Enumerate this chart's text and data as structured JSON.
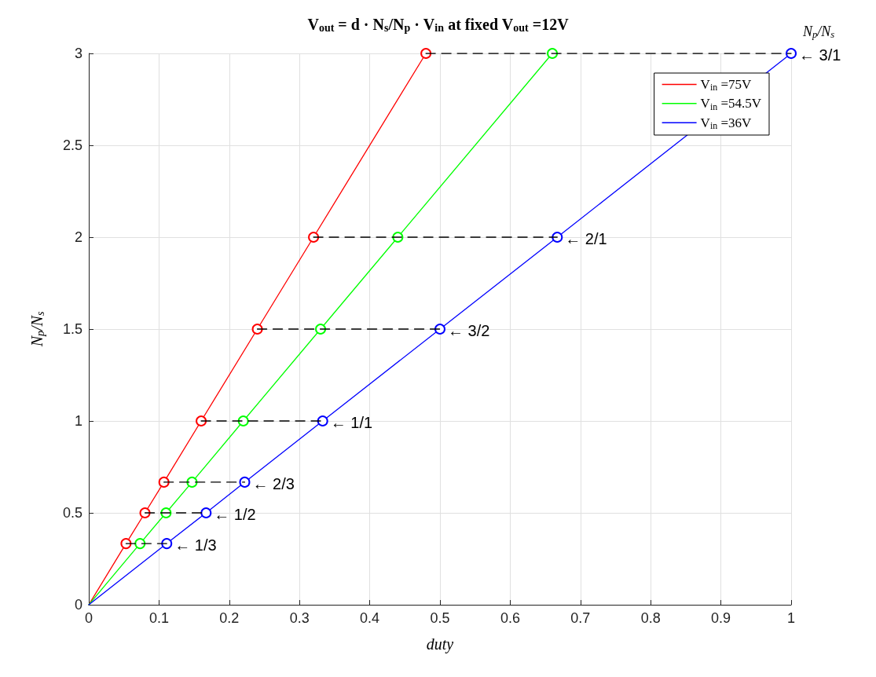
{
  "chart_data": {
    "type": "line",
    "title": "V$_{out}$ = d · N$_{s}$/N$_{p}$ · V$_{in}$ at fixed V$_{out}$ =12V",
    "xlabel": "duty",
    "ylabel": "N$_{p}$/N$_{s}$",
    "xlim": [
      0,
      1
    ],
    "ylim": [
      0,
      3
    ],
    "xticks": [
      0,
      0.1,
      0.2,
      0.3,
      0.4,
      0.5,
      0.6,
      0.7,
      0.8,
      0.9,
      1
    ],
    "yticks": [
      0,
      0.5,
      1,
      1.5,
      2,
      2.5,
      3
    ],
    "grid": true,
    "legend": "top right",
    "marker": "circle",
    "line_style": "solid",
    "series": [
      {
        "name": "V$_{in}$ =75V",
        "color": "#ff0000",
        "x": [
          0,
          0.053,
          0.08,
          0.107,
          0.16,
          0.24,
          0.32,
          0.48
        ],
        "values": [
          0,
          0.333,
          0.5,
          0.667,
          1,
          1.5,
          2,
          3
        ]
      },
      {
        "name": "V$_{in}$ =54.5V",
        "color": "#00ff00",
        "x": [
          0,
          0.073,
          0.11,
          0.147,
          0.22,
          0.33,
          0.44,
          0.66
        ],
        "values": [
          0,
          0.333,
          0.5,
          0.667,
          1,
          1.5,
          2,
          3
        ]
      },
      {
        "name": "V$_{in}$ =36V",
        "color": "#0000ff",
        "x": [
          0,
          0.111,
          0.167,
          0.222,
          0.333,
          0.5,
          0.667,
          1
        ],
        "values": [
          0,
          0.333,
          0.5,
          0.667,
          1,
          1.5,
          2,
          3
        ]
      },
      {
        "color": "#000000",
        "line_style": "dashed",
        "marker": "none",
        "x": [
          0.053,
          0.111
        ],
        "values": [
          0.333,
          0.333
        ]
      },
      {
        "color": "#000000",
        "line_style": "dashed",
        "marker": "none",
        "x": [
          0.08,
          0.167
        ],
        "values": [
          0.5,
          0.5
        ]
      },
      {
        "color": "#000000",
        "line_style": "dashed",
        "marker": "none",
        "x": [
          0.107,
          0.222
        ],
        "values": [
          0.667,
          0.667
        ]
      },
      {
        "color": "#000000",
        "line_style": "dashed",
        "marker": "none",
        "x": [
          0.16,
          0.333
        ],
        "values": [
          1,
          1
        ]
      },
      {
        "color": "#000000",
        "line_style": "dashed",
        "marker": "none",
        "x": [
          0.24,
          0.5
        ],
        "values": [
          1.5,
          1.5
        ]
      },
      {
        "color": "#000000",
        "line_style": "dashed",
        "marker": "none",
        "x": [
          0.32,
          0.667
        ],
        "values": [
          2,
          2
        ]
      },
      {
        "color": "#000000",
        "line_style": "dashed",
        "marker": "none",
        "x": [
          0.48,
          1
        ],
        "values": [
          3,
          3
        ]
      }
    ],
    "annotations": [
      "N$_{p}$/N$_{s}$",
      {
        "text": "← 1/3",
        "x": 0.111,
        "y": 0.333
      },
      {
        "text": "← 1/2",
        "x": 0.167,
        "y": 0.5
      },
      {
        "text": "← 2/3",
        "x": 0.222,
        "y": 0.667
      },
      {
        "text": "← 1/1",
        "x": 0.333,
        "y": 1
      },
      {
        "text": "← 3/2",
        "x": 0.5,
        "y": 1.5
      },
      {
        "text": "← 2/1",
        "x": 0.667,
        "y": 2
      },
      {
        "text": "← 3/1",
        "x": 1,
        "y": 3
      }
    ]
  }
}
